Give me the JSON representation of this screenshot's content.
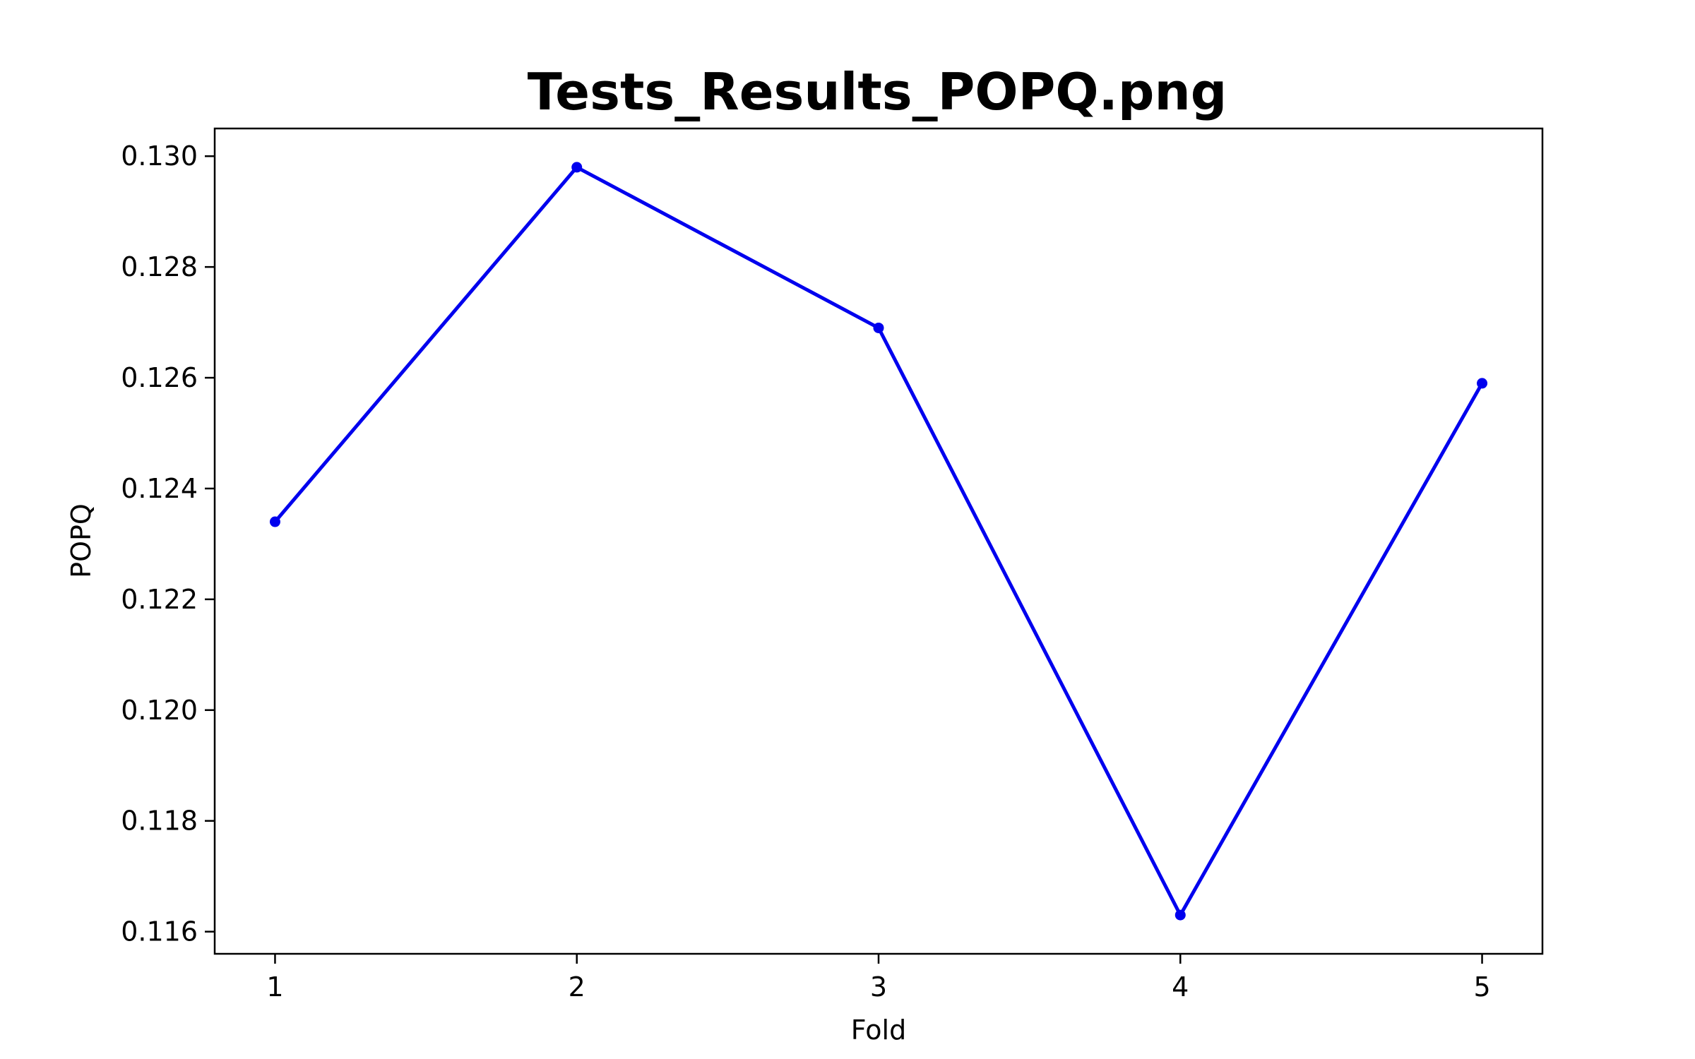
{
  "chart_data": {
    "type": "line",
    "title": "Tests_Results_POPQ.png",
    "xlabel": "Fold",
    "ylabel": "POPQ",
    "x": [
      1,
      2,
      3,
      4,
      5
    ],
    "x_tick_labels": [
      "1",
      "2",
      "3",
      "4",
      "5"
    ],
    "xlim": [
      0.8,
      5.2
    ],
    "ylim": [
      0.1156,
      0.1305
    ],
    "y_ticks": [
      0.116,
      0.118,
      0.12,
      0.122,
      0.124,
      0.126,
      0.128,
      0.13
    ],
    "y_tick_labels": [
      "0.116",
      "0.118",
      "0.120",
      "0.122",
      "0.124",
      "0.126",
      "0.128",
      "0.130"
    ],
    "series": [
      {
        "values": [
          0.1234,
          0.1298,
          0.1269,
          0.1163,
          0.1259
        ],
        "color": "#0000ee",
        "marker": "circle"
      }
    ],
    "grid": false,
    "legend": "none"
  }
}
